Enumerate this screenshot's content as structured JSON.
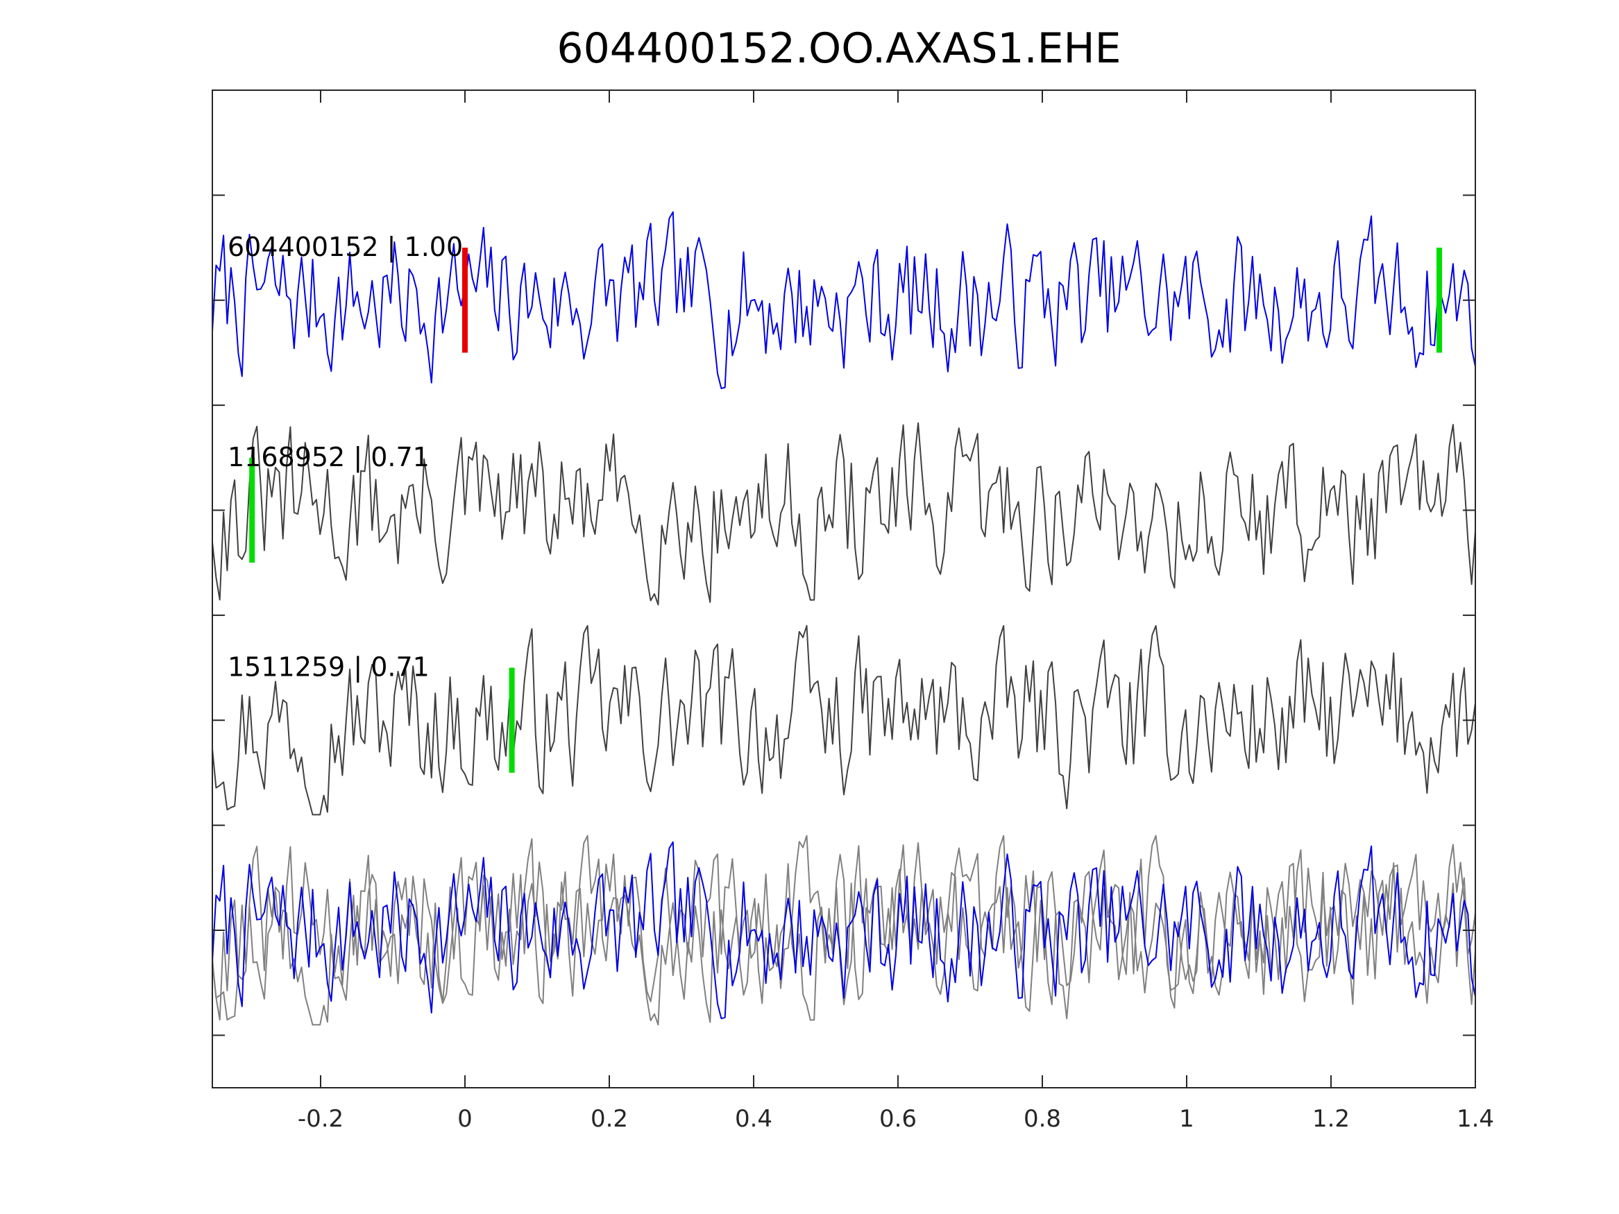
{
  "chart_data": {
    "type": "line",
    "title": "604400152.OO.AXAS1.EHE",
    "xlabel": "",
    "ylabel": "",
    "xlim": [
      -0.35,
      1.4
    ],
    "ylim": [
      0,
      4.75
    ],
    "x_ticks": [
      -0.2,
      0,
      0.2,
      0.4,
      0.6,
      0.8,
      1,
      1.2,
      1.4
    ],
    "x_tick_labels": [
      "-0.2",
      "0",
      "0.2",
      "0.4",
      "0.6",
      "0.8",
      "1",
      "1.2",
      "1.4"
    ],
    "y_ticks": [
      0.25,
      0.75,
      1.25,
      1.75,
      2.25,
      2.75,
      3.25,
      3.75,
      4.25
    ],
    "grid": false,
    "legend": "none",
    "colors": {
      "primary_trace": "#0000e6",
      "match_trace": "#404040",
      "overlay_match": "#808080",
      "pick_primary": "#e60000",
      "pick_other": "#00dd00",
      "axes": "#262626"
    },
    "traces": [
      {
        "label": "604400152 | 1.00",
        "offset": 3.75,
        "color": "#0000e6",
        "pick_time": 0.0,
        "pick_color": "#e60000",
        "end_pick_time": 1.35,
        "end_pick_color": "#00dd00"
      },
      {
        "label": "1168952 | 0.71",
        "offset": 2.75,
        "color": "#404040",
        "pick_time": -0.295,
        "pick_color": "#00dd00"
      },
      {
        "label": "1511259 | 0.71",
        "offset": 1.75,
        "color": "#404040",
        "pick_time": 0.065,
        "pick_color": "#00dd00"
      }
    ],
    "overlay": {
      "offset": 0.75
    }
  }
}
